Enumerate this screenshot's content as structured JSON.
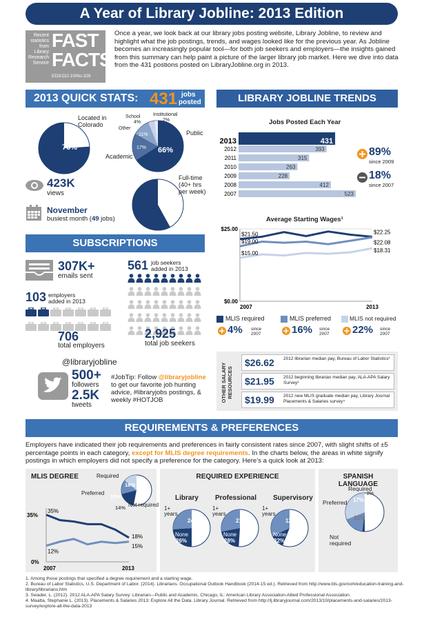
{
  "title": "A Year of Library Jobline: 2013 Edition",
  "fastfacts": {
    "side_lines": [
      "Recent",
      "statistics",
      "from",
      "Library",
      "Research",
      "Service"
    ],
    "big1": "FAST",
    "big2": "FACTS",
    "code": "ED3/110.10/No.328"
  },
  "intro": "Once a year, we look back at our library jobs posting website, Library Jobline, to review and highlight what the job postings, trends, and wages looked like for the previous year. As Jobline becomes an increasingly popular tool—for both job seekers and employers—the insights gained from this summary can help paint a picture of the larger library job market. Here we dive into data from the 431 postions posted on LibraryJobline.org in 2013.",
  "quick_stats": {
    "heading": "2013 QUICK STATS:",
    "jobs_count": "431",
    "jobs_label1": "jobs",
    "jobs_label2": "posted",
    "colorado_label1": "Located in",
    "colorado_label2": "Colorado",
    "colorado_pct": "76%",
    "colorado_value": 76,
    "school_label": "School",
    "school_pct": "4%",
    "institutional_label": "Institutional",
    "institutional_pct": "2%",
    "other_label": "Other",
    "other_pct": "11%",
    "academic_label": "Academic",
    "academic_pct": "17%",
    "public_label": "Public",
    "public_pct": "66%",
    "views_count": "423K",
    "views_label": "views",
    "fulltime_label1": "Full-time",
    "fulltime_label2": "(40+ hrs",
    "fulltime_label3": "per week)",
    "fulltime_pct": "58%",
    "fulltime_value": 58,
    "busiest_month": "November",
    "busiest_label": "busiest month (",
    "busiest_count": "49",
    "busiest_suffix": " jobs)"
  },
  "trends": {
    "heading": "LIBRARY JOBLINE TRENDS",
    "jobs_chart_title": "Jobs Posted Each Year",
    "up_pct": "89%",
    "up_since": "since 2009",
    "down_pct": "18%",
    "down_since": "since 2007",
    "wages_title": "Average Starting Wages¹",
    "wage_start_labels": [
      "$21.50",
      "$19.00",
      "$15.00"
    ],
    "wage_end_labels": [
      "$22.25",
      "$22.08",
      "$18.31"
    ],
    "y_top": "$25.00",
    "y_bottom": "$0.00",
    "x_start": "2007",
    "x_end": "2013",
    "legend": [
      {
        "name": "MLIS required",
        "pct": "4%",
        "since": "since 2007",
        "color": "#1e3f73"
      },
      {
        "name": "MLIS preferred",
        "pct": "16%",
        "since": "since 2007",
        "color": "#6f8fbe"
      },
      {
        "name": "MLIS not required",
        "pct": "22%",
        "since": "since 2007",
        "color": "#c5d3e8"
      }
    ]
  },
  "chart_data": [
    {
      "type": "bar",
      "title": "Jobs Posted Each Year",
      "categories": [
        "2013",
        "2012",
        "2011",
        "2010",
        "2009",
        "2008",
        "2007"
      ],
      "values": [
        431,
        393,
        315,
        263,
        228,
        412,
        523
      ]
    },
    {
      "type": "line",
      "title": "Average Starting Wages¹",
      "x": [
        "2007",
        "2008",
        "2009",
        "2010",
        "2011",
        "2012",
        "2013"
      ],
      "ylim": [
        0,
        25
      ],
      "series": [
        {
          "name": "MLIS required",
          "values": [
            21.5,
            22.3,
            23.9,
            22.5,
            24.1,
            23.0,
            22.25
          ]
        },
        {
          "name": "MLIS preferred",
          "values": [
            19.0,
            20.6,
            20.2,
            20.6,
            19.7,
            20.9,
            22.08
          ]
        },
        {
          "name": "MLIS not required",
          "values": [
            15.0,
            16.2,
            15.8,
            16.7,
            16.4,
            16.9,
            18.31
          ]
        }
      ]
    },
    {
      "type": "line",
      "title": "MLIS DEGREE",
      "x": [
        "2007",
        "2008",
        "2009",
        "2010",
        "2011",
        "2012",
        "2013"
      ],
      "ylim": [
        0,
        35
      ],
      "series": [
        {
          "name": "Required",
          "values": [
            35,
            31,
            30,
            28,
            28,
            24,
            18
          ]
        },
        {
          "name": "Preferred",
          "values": [
            12,
            15,
            17,
            13,
            15,
            14,
            15
          ]
        }
      ]
    }
  ],
  "subscriptions": {
    "heading": "SUBSCRIPTIONS",
    "emails_count": "307K+",
    "emails_label": "emails sent",
    "employers_added": "103",
    "employers_added_label1": "employers",
    "employers_added_label2": "added in 2013",
    "total_employers": "706",
    "total_employers_label": "total employers",
    "seekers_added": "561",
    "seekers_added_label1": "job seekers",
    "seekers_added_label2": "added in 2013",
    "total_seekers": "2,925",
    "total_seekers_label": "total job seekers",
    "handle": "@libraryjobline",
    "followers_count": "500+",
    "followers_label": "followers",
    "tweets_count": "2.5K",
    "tweets_label": "tweets",
    "jobtip_pre": "#JobTip: Follow ",
    "jobtip_handle": "@libraryjobline",
    "jobtip_post": " to get our favorite job hunting advice, #libraryjobs postings, & weekly #HOTJOB"
  },
  "salary": {
    "side_label": "OTHER SALARY RESOURCES",
    "rows": [
      {
        "amount": "$26.62",
        "desc": "2012 librarian median pay, Bureau of Labor Statistics²"
      },
      {
        "amount": "$21.95",
        "desc": "2012 beginning librarian median pay, ALA-APA Salary Survey³"
      },
      {
        "amount": "$19.99",
        "desc": "2012 new MLIS graduate median pay, Library Journal Placements & Salaries survey⁴"
      }
    ]
  },
  "requirements": {
    "heading": "REQUIREMENTS & PREFERENCES",
    "intro_pre": "Employers have indicated their job requirements and preferences in fairly consistent rates since 2007, with slight shifts of ±5 percentage points in each category, ",
    "intro_highlight": "except for MLIS degree requirements",
    "intro_post": ". In the charts below, the areas in white signify postings in which employers did not specify a preference for the category. Here’s a quick look at 2013:",
    "mlis": {
      "title": "MLIS DEGREE",
      "required_label": "Required",
      "required_pct": "18%",
      "preferred_label": "Preferred",
      "preferred_pct": "15%",
      "notreq_pct": "14%",
      "notreq_label": "Not required",
      "y35": "35%",
      "y0": "0%",
      "start_req": "35%",
      "start_pref": "12%",
      "end_req": "18%",
      "end_pref": "15%",
      "x_start": "2007",
      "x_end": "2013"
    },
    "experience": {
      "title": "REQUIRED EXPERIENCE",
      "cols": [
        {
          "name": "Library",
          "one_label": "1+ years",
          "one_pct": "24%",
          "none_label": "None",
          "none_pct": "26%",
          "one": 24,
          "none": 26
        },
        {
          "name": "Professional",
          "one_label": "1+ years",
          "one_pct": "21%",
          "none_label": "None",
          "none_pct": "28%",
          "one": 21,
          "none": 28
        },
        {
          "name": "Supervisory",
          "one_label": "1+ years",
          "one_pct": "12%",
          "none_label": "None",
          "none_pct": "32%",
          "one": 12,
          "none": 32
        }
      ]
    },
    "spanish": {
      "title1": "SPANISH",
      "title2": "LANGUAGE",
      "required_label": "Required",
      "required_pct": "2%",
      "preferred_label": "Preferred",
      "preferred_pct": "17%",
      "notreq_pct": "31%",
      "notreq_label1": "Not",
      "notreq_label2": "required"
    }
  },
  "footnotes": [
    "1. Among those postings that specified a degree requirement and a starting wage.",
    "2. Bureau of Labor Statistics, U.S. Department of Labor. (2014). Librarians. Occupational Outlook Handbook (2014-15 ed.). Retrieved from http://www.bls.gov/ooh/education-training-and-library/librarians.htm",
    "3. Swader, L. (2012). 2012 ALA-APA Salary Survey: Librarian—Public and Academic. Chicago, IL: American Library Association-Allied Professional Association.",
    "4. Maatta, Stephanie L. (2013). Placements & Salaries 2013: Explore All the Data. Library Journal. Retrieved from http://lj.libraryjournal.com/2013/10/placements-and-salaries/2013-survey/explore-all-the-data-2013"
  ],
  "colors": {
    "navy": "#1e3f73",
    "mid": "#6f8fbe",
    "light": "#c5d3e8",
    "orange": "#f29420",
    "header": "#3b73b4"
  }
}
